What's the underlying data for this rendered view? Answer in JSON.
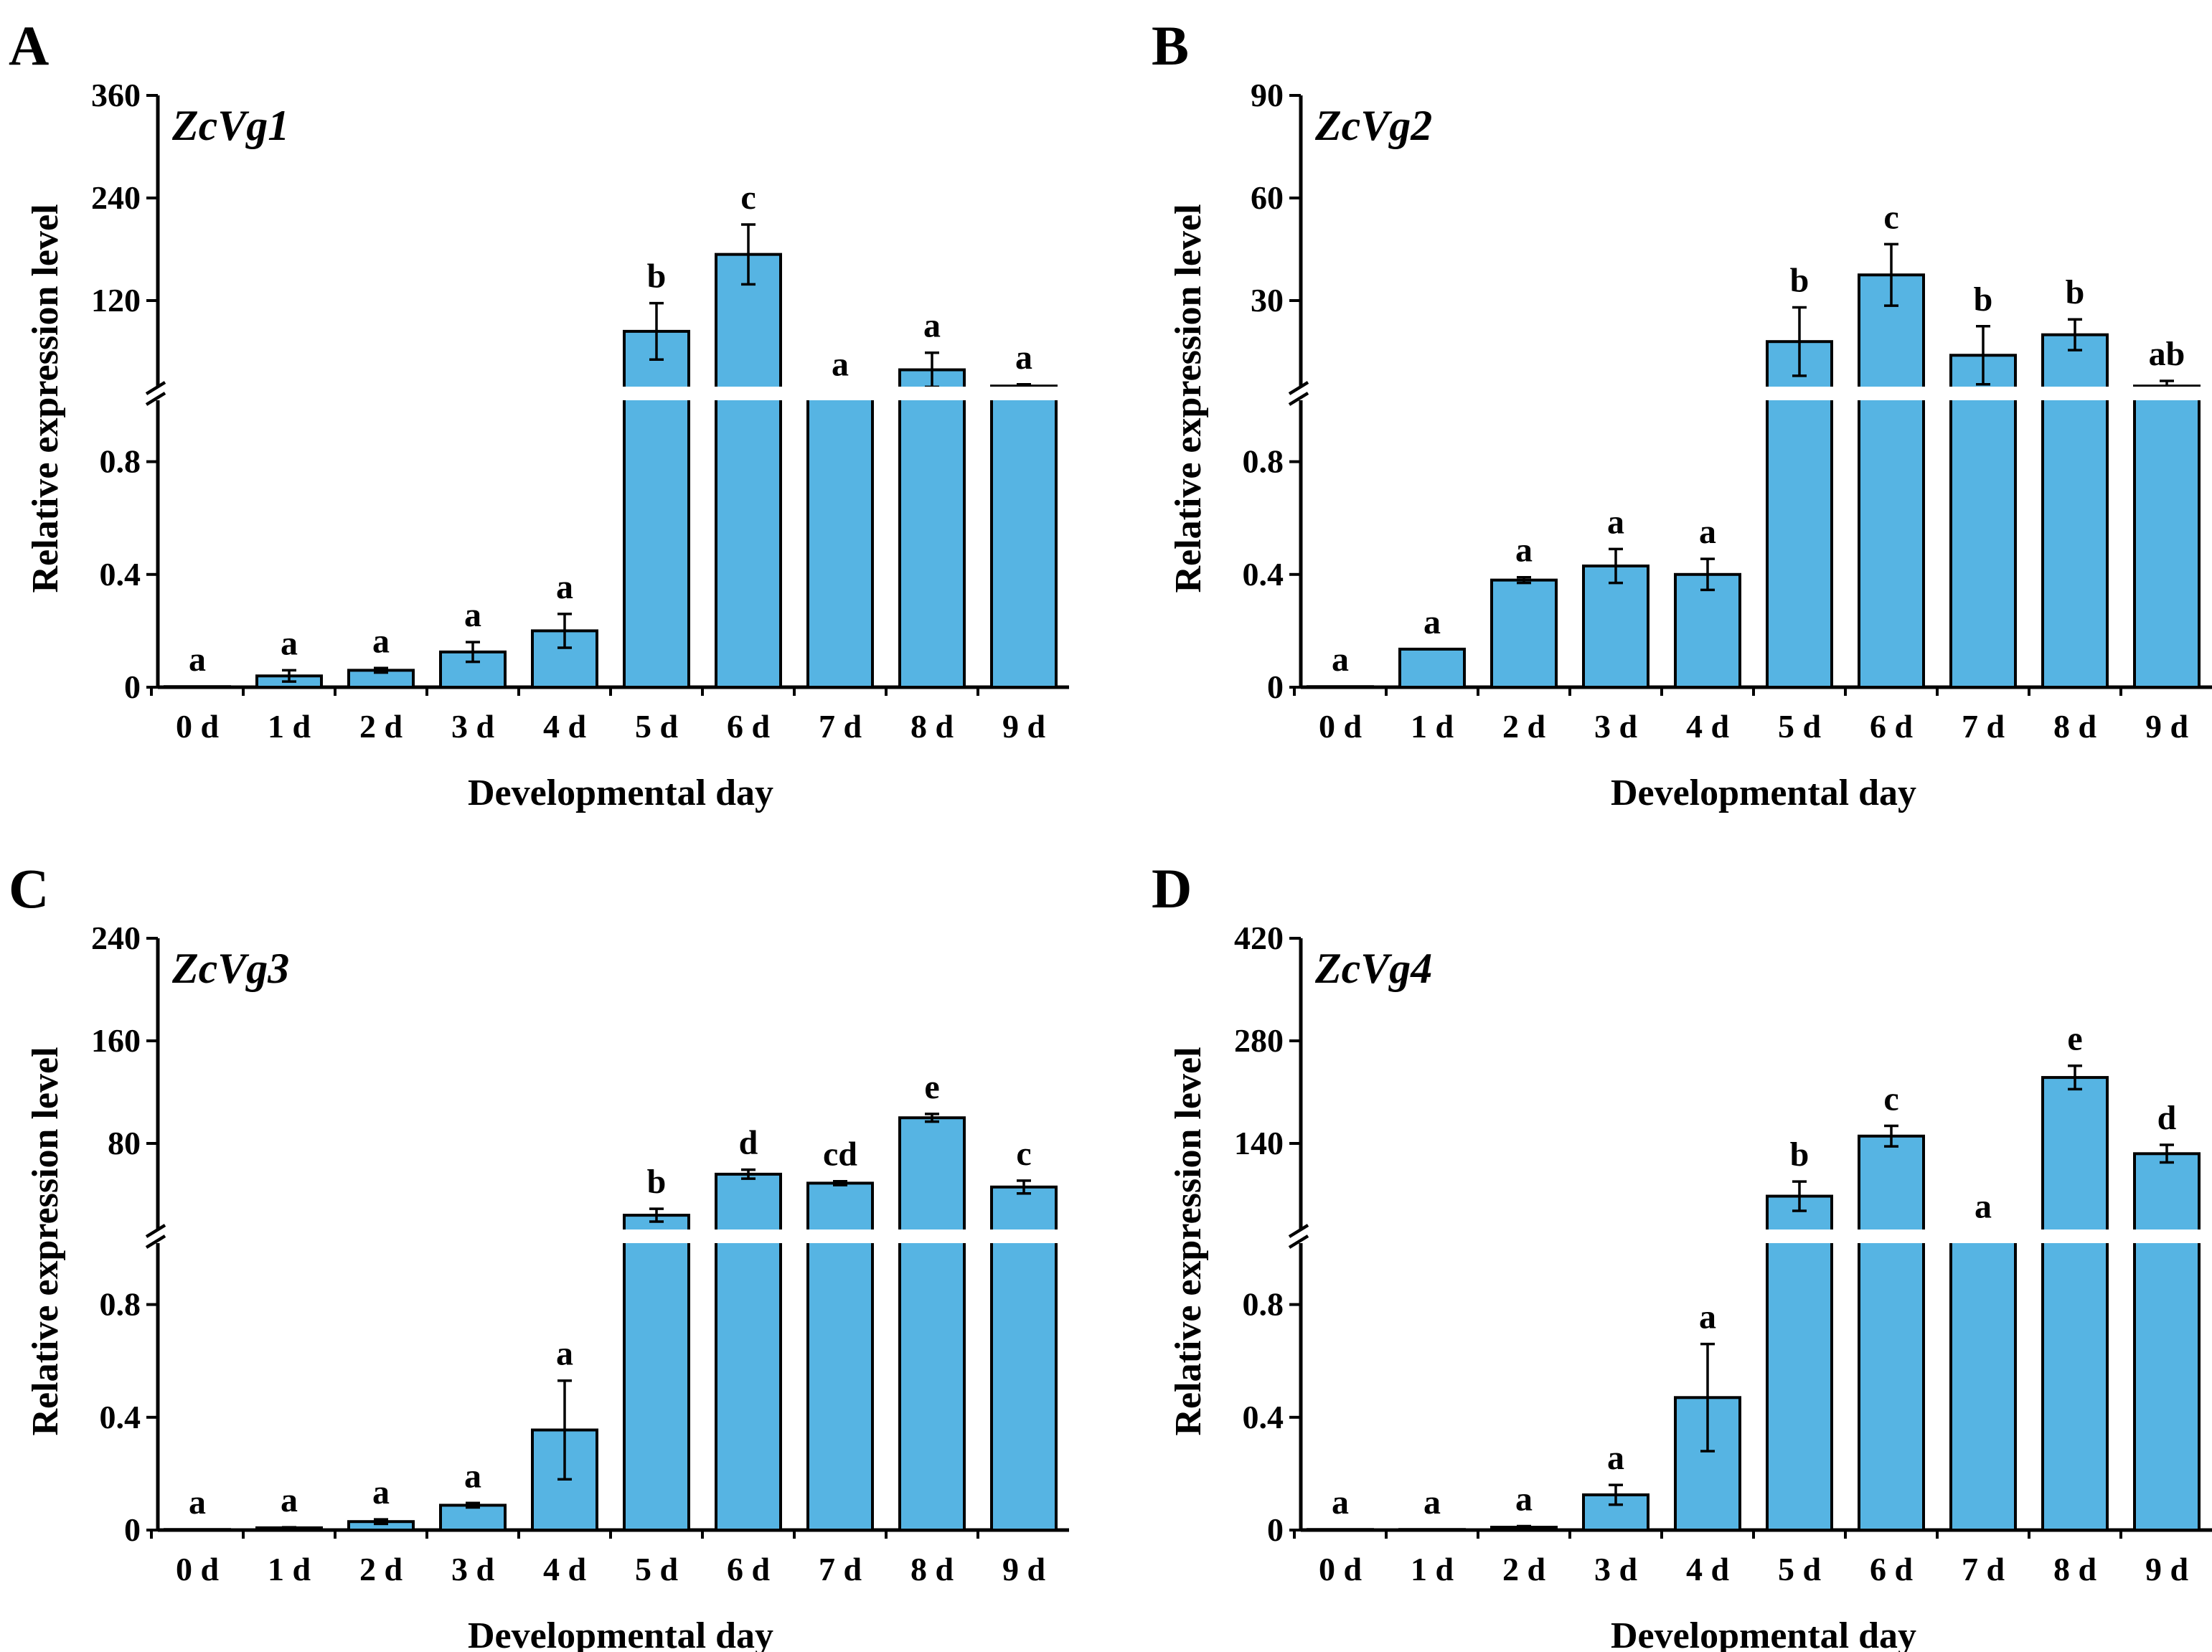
{
  "figure": {
    "bar_color": "#56B4E3",
    "xlabel": "Developmental day",
    "ylabel": "Relative expression level"
  },
  "chart_data": [
    {
      "type": "bar",
      "panel": "A",
      "title": "ZcVg1",
      "xlabel": "Developmental day",
      "ylabel": "Relative expression level",
      "categories": [
        "0 d",
        "1 d",
        "2 d",
        "3 d",
        "4 d",
        "5 d",
        "6 d",
        "7 d",
        "8 d",
        "9 d"
      ],
      "values": [
        0.002,
        0.04,
        0.06,
        0.125,
        0.2,
        84,
        174,
        12,
        39,
        20
      ],
      "errors": [
        0,
        0.02,
        0.008,
        0.035,
        0.06,
        33,
        35,
        2,
        20,
        2
      ],
      "letters": [
        "a",
        "a",
        "a",
        "a",
        "a",
        "b",
        "c",
        "a",
        "a",
        "a"
      ],
      "lower_ticks": [
        "0",
        "0.4",
        "0.8"
      ],
      "upper_ticks": [
        "120",
        "240",
        "360"
      ],
      "ylim_lower": [
        0,
        1
      ],
      "ylim_upper": [
        0,
        360
      ]
    },
    {
      "type": "bar",
      "panel": "B",
      "title": "ZcVg2",
      "xlabel": "Developmental day",
      "ylabel": "Relative expression level",
      "categories": [
        "0 d",
        "1 d",
        "2 d",
        "3 d",
        "4 d",
        "5 d",
        "6 d",
        "7 d",
        "8 d",
        "9 d"
      ],
      "values": [
        0.002,
        0.135,
        0.38,
        0.43,
        0.4,
        18,
        37.5,
        14,
        20,
        5
      ],
      "errors": [
        0,
        0,
        0.01,
        0.06,
        0.055,
        10,
        9,
        8.5,
        4.5,
        1.5
      ],
      "letters": [
        "a",
        "a",
        "a",
        "a",
        "a",
        "b",
        "c",
        "b",
        "b",
        "ab"
      ],
      "lower_ticks": [
        "0",
        "0.4",
        "0.8"
      ],
      "upper_ticks": [
        "30",
        "60",
        "90"
      ],
      "ylim_lower": [
        0,
        1
      ],
      "ylim_upper": [
        0,
        90
      ]
    },
    {
      "type": "bar",
      "panel": "C",
      "title": "ZcVg3",
      "xlabel": "Developmental day",
      "ylabel": "Relative expression level",
      "categories": [
        "0 d",
        "1 d",
        "2 d",
        "3 d",
        "4 d",
        "5 d",
        "6 d",
        "7 d",
        "8 d",
        "9 d"
      ],
      "values": [
        0.002,
        0.008,
        0.03,
        0.088,
        0.355,
        24,
        56,
        49,
        100,
        46
      ],
      "errors": [
        0,
        0.002,
        0.008,
        0.008,
        0.175,
        5,
        3.5,
        1.5,
        3,
        5
      ],
      "letters": [
        "a",
        "a",
        "a",
        "a",
        "a",
        "b",
        "d",
        "cd",
        "e",
        "c"
      ],
      "lower_ticks": [
        "0",
        "0.4",
        "0.8"
      ],
      "upper_ticks": [
        "80",
        "160",
        "240"
      ],
      "ylim_lower": [
        0,
        1
      ],
      "ylim_upper": [
        0,
        240
      ]
    },
    {
      "type": "bar",
      "panel": "D",
      "title": "ZcVg4",
      "xlabel": "Developmental day",
      "ylabel": "Relative expression level",
      "categories": [
        "0 d",
        "1 d",
        "2 d",
        "3 d",
        "4 d",
        "5 d",
        "6 d",
        "7 d",
        "8 d",
        "9 d"
      ],
      "values": [
        0.002,
        0.002,
        0.01,
        0.125,
        0.47,
        68,
        150,
        17,
        230,
        126
      ],
      "errors": [
        0,
        0,
        0.004,
        0.035,
        0.19,
        20,
        14,
        0,
        16,
        12
      ],
      "letters": [
        "a",
        "a",
        "a",
        "a",
        "a",
        "b",
        "c",
        "a",
        "e",
        "d"
      ],
      "lower_ticks": [
        "0",
        "0.4",
        "0.8"
      ],
      "upper_ticks": [
        "140",
        "280",
        "420"
      ],
      "ylim_lower": [
        0,
        1
      ],
      "ylim_upper": [
        0,
        420
      ]
    }
  ]
}
